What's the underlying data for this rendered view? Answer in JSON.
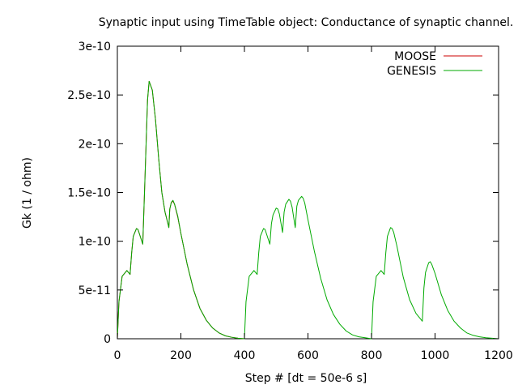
{
  "chart_data": {
    "type": "line",
    "title": "Synaptic input using TimeTable object: Conductance of synaptic channel.",
    "xlabel": "Step # [dt = 50e-6 s]",
    "ylabel": "Gk (1 / ohm)",
    "xlim": [
      0,
      1200
    ],
    "ylim": [
      0,
      3e-10
    ],
    "x_ticks": [
      0,
      200,
      400,
      600,
      800,
      1000,
      1200
    ],
    "x_tick_labels": [
      "0",
      "200",
      "400",
      "600",
      "800",
      "1000",
      "1200"
    ],
    "y_ticks": [
      0,
      5e-11,
      1e-10,
      1.5e-10,
      2e-10,
      2.5e-10,
      3e-10
    ],
    "y_tick_labels": [
      "0",
      "5e-11",
      "1e-10",
      "1.5e-10",
      "2e-10",
      "2.5e-10",
      "3e-10"
    ],
    "grid": false,
    "legend_position": "top-right",
    "series": [
      {
        "name": "MOOSE",
        "color": "#cc0000",
        "x": [
          0,
          5,
          15,
          30,
          40,
          45,
          50,
          60,
          65,
          70,
          80,
          90,
          95,
          100,
          110,
          120,
          130,
          140,
          150,
          160,
          162,
          165,
          170,
          175,
          180,
          190,
          200,
          220,
          240,
          260,
          280,
          300,
          320,
          340,
          360,
          380,
          400
        ],
        "y": [
          0,
          3.8e-11,
          6.4e-11,
          7e-11,
          6.6e-11,
          8.8e-11,
          1.05e-10,
          1.13e-10,
          1.12e-10,
          1.07e-10,
          9.7e-11,
          1.95e-10,
          2.45e-10,
          2.64e-10,
          2.55e-10,
          2.25e-10,
          1.85e-10,
          1.5e-10,
          1.3e-10,
          1.17e-10,
          1.14e-10,
          1.33e-10,
          1.4e-10,
          1.41e-10,
          1.38e-10,
          1.25e-10,
          1.08e-10,
          7.6e-11,
          5e-11,
          3.1e-11,
          1.9e-11,
          1.1e-11,
          6e-12,
          3e-12,
          1.5e-12,
          5e-13,
          0
        ]
      },
      {
        "name": "GENESIS",
        "color": "#00aa00",
        "x": [
          0,
          5,
          15,
          30,
          40,
          45,
          50,
          60,
          65,
          70,
          80,
          90,
          95,
          100,
          110,
          120,
          130,
          140,
          150,
          160,
          162,
          165,
          170,
          175,
          180,
          190,
          200,
          220,
          240,
          260,
          280,
          300,
          320,
          340,
          360,
          380,
          400,
          405,
          415,
          430,
          440,
          445,
          450,
          460,
          465,
          470,
          480,
          485,
          490,
          500,
          505,
          510,
          520,
          525,
          530,
          540,
          545,
          550,
          560,
          565,
          570,
          580,
          585,
          590,
          600,
          620,
          640,
          660,
          680,
          700,
          720,
          740,
          760,
          780,
          800,
          805,
          815,
          830,
          840,
          845,
          850,
          860,
          865,
          870,
          880,
          890,
          900,
          920,
          940,
          960,
          965,
          970,
          980,
          985,
          990,
          1000,
          1020,
          1040,
          1060,
          1080,
          1100,
          1120,
          1140,
          1160,
          1180,
          1200
        ],
        "y": [
          0,
          3.8e-11,
          6.4e-11,
          7e-11,
          6.6e-11,
          8.8e-11,
          1.05e-10,
          1.13e-10,
          1.12e-10,
          1.07e-10,
          9.7e-11,
          1.95e-10,
          2.45e-10,
          2.64e-10,
          2.55e-10,
          2.25e-10,
          1.85e-10,
          1.5e-10,
          1.3e-10,
          1.17e-10,
          1.14e-10,
          1.33e-10,
          1.4e-10,
          1.42e-10,
          1.38e-10,
          1.26e-10,
          1.08e-10,
          7.6e-11,
          5e-11,
          3.1e-11,
          1.9e-11,
          1.1e-11,
          6e-12,
          3e-12,
          1.5e-12,
          5e-13,
          0,
          3.8e-11,
          6.4e-11,
          7e-11,
          6.6e-11,
          8.8e-11,
          1.05e-10,
          1.13e-10,
          1.12e-10,
          1.07e-10,
          9.7e-11,
          1.18e-10,
          1.27e-10,
          1.34e-10,
          1.33e-10,
          1.28e-10,
          1.09e-10,
          1.3e-10,
          1.38e-10,
          1.43e-10,
          1.41e-10,
          1.35e-10,
          1.14e-10,
          1.36e-10,
          1.42e-10,
          1.46e-10,
          1.44e-10,
          1.39e-10,
          1.22e-10,
          9e-11,
          6.2e-11,
          4e-11,
          2.5e-11,
          1.5e-11,
          8e-12,
          4e-12,
          2e-12,
          1e-12,
          0,
          3.8e-11,
          6.4e-11,
          7e-11,
          6.6e-11,
          8.8e-11,
          1.05e-10,
          1.14e-10,
          1.13e-10,
          1.09e-10,
          9.5e-11,
          7.9e-11,
          6.3e-11,
          4e-11,
          2.6e-11,
          1.8e-11,
          5.2e-11,
          6.8e-11,
          7.8e-11,
          7.9e-11,
          7.6e-11,
          6.7e-11,
          4.5e-11,
          2.9e-11,
          1.8e-11,
          1.1e-11,
          6e-12,
          3.5e-12,
          2e-12,
          1e-12,
          5e-13,
          0
        ]
      }
    ]
  }
}
